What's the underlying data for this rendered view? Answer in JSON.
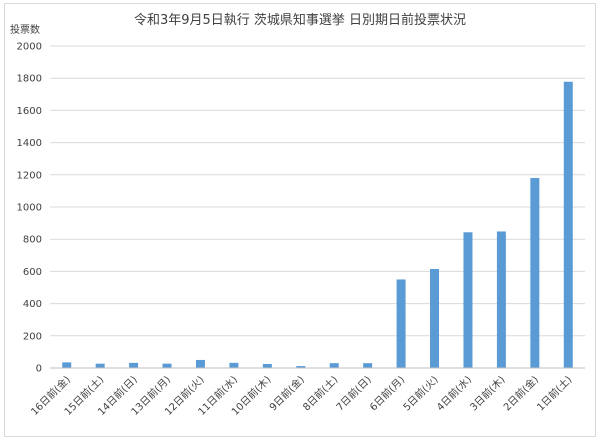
{
  "chart_data": {
    "type": "bar",
    "title": "令和3年9月5日執行 茨城県知事選挙 日別期日前投票状況",
    "ylabel": "投票数",
    "xlabel": "",
    "ylim": [
      0,
      2000
    ],
    "yticks": [
      0,
      200,
      400,
      600,
      800,
      1000,
      1200,
      1400,
      1600,
      1800,
      2000
    ],
    "grid": true,
    "legend": "none",
    "bar_color": "#5b9bd5",
    "categories": [
      "16日前(金)",
      "15日前(土)",
      "14日前(日)",
      "13日前(月)",
      "12日前(火)",
      "11日前(水)",
      "10日前(木)",
      "9日前(金)",
      "8日前(土)",
      "7日前(日)",
      "6日前(月)",
      "5日前(火)",
      "4日前(水)",
      "3日前(木)",
      "2日前(金)",
      "1日前(土)"
    ],
    "values": [
      35,
      27,
      32,
      27,
      50,
      32,
      25,
      12,
      30,
      30,
      550,
      615,
      843,
      848,
      1180,
      1778
    ]
  }
}
